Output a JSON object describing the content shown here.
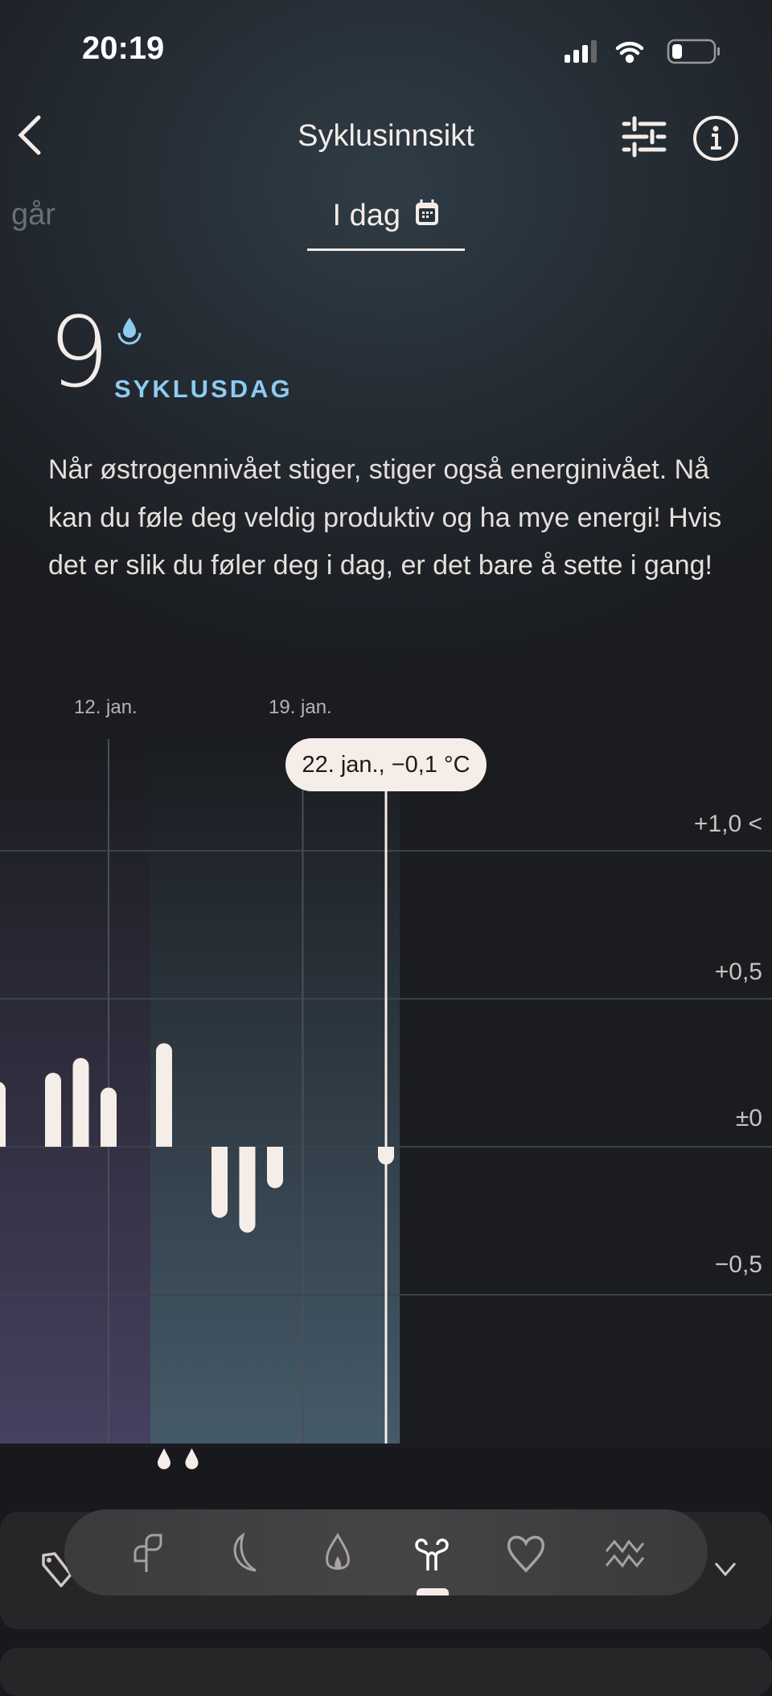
{
  "status_bar": {
    "time": "20:19"
  },
  "header": {
    "title": "Syklusinnsikt",
    "back_icon": "chevron-left-icon",
    "filter_icon": "sliders-icon",
    "info_icon": "info-circle-icon"
  },
  "tabs": {
    "previous": "går",
    "current": "I dag",
    "calendar_icon": "calendar-icon"
  },
  "cycle": {
    "day": "9",
    "label": "SYKLUSDAG",
    "label_color": "#8ecbf0",
    "drop_icon": "drop-icon"
  },
  "description": "Når østrogennivået stiger, stiger også energinivået. Nå kan du føle deg veldig produktiv og ha mye energi! Hvis det er slik du føler deg i dag, er det bare å sette i gang!",
  "chart_data": {
    "type": "bar",
    "x_ticks": [
      "12. jan.",
      "19. jan."
    ],
    "y_ticks": [
      "+1,0 <",
      "+0,5",
      "±0",
      "−0,5"
    ],
    "ylim": [
      -1.0,
      1.1
    ],
    "unit": "°C",
    "days": [
      8,
      10,
      11,
      12,
      14,
      16,
      17,
      18,
      22
    ],
    "values": [
      0.22,
      0.25,
      0.3,
      0.2,
      0.35,
      -0.24,
      -0.29,
      -0.14,
      -0.1
    ],
    "selected": {
      "day": 22,
      "label": "22. jan., −0,1 °C"
    },
    "phases": [
      {
        "to_day": 13.5,
        "color": "#47405f"
      },
      {
        "from_day": 13.5,
        "to_day": 22.5,
        "color": "#455a69"
      }
    ],
    "period_drop_days": [
      14,
      15
    ],
    "grid": true
  },
  "bottom_nav": {
    "items": [
      {
        "icon": "sprout-icon",
        "active": false
      },
      {
        "icon": "moon-icon",
        "active": false
      },
      {
        "icon": "flame-icon",
        "active": false
      },
      {
        "icon": "uterus-icon",
        "active": true
      },
      {
        "icon": "heart-icon",
        "active": false
      },
      {
        "icon": "waves-icon",
        "active": false
      }
    ],
    "tag_icon": "tag-icon",
    "expand_icon": "chevron-down-icon"
  }
}
